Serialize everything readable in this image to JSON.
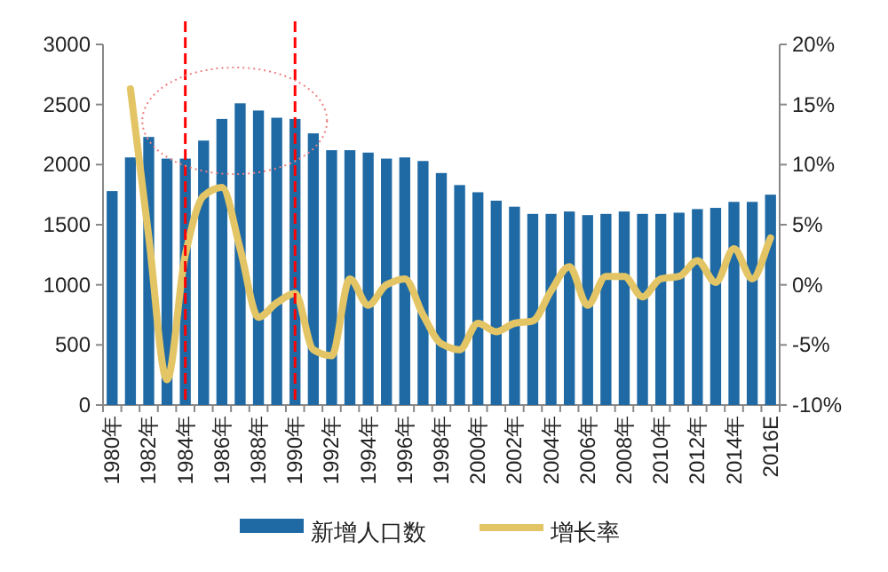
{
  "chart_data": {
    "type": "bar",
    "categories": [
      "1980年",
      null,
      "1982年",
      null,
      "1984年",
      null,
      "1986年",
      null,
      "1988年",
      null,
      "1990年",
      null,
      "1992年",
      null,
      "1994年",
      null,
      "1996年",
      null,
      "1998年",
      null,
      "2000年",
      null,
      "2002年",
      null,
      "2004年",
      null,
      "2006年",
      null,
      "2008年",
      null,
      "2010年",
      null,
      "2012年",
      null,
      "2014年",
      null,
      "2016E"
    ],
    "series": [
      {
        "name": "新增人口数",
        "color": "#1f6aa5",
        "values": [
          1780,
          2060,
          2230,
          2050,
          2050,
          2200,
          2380,
          2510,
          2450,
          2390,
          2380,
          2260,
          2120,
          2120,
          2100,
          2050,
          2060,
          2030,
          1930,
          1830,
          1770,
          1700,
          1650,
          1590,
          1590,
          1610,
          1580,
          1590,
          1610,
          1590,
          1590,
          1600,
          1630,
          1640,
          1690,
          1690,
          1750
        ]
      },
      {
        "name": "增长率",
        "type": "line",
        "axis": "y2",
        "color": "#e3c565",
        "values": [
          null,
          16.3,
          4,
          -7.9,
          2.5,
          7.4,
          8.1,
          3,
          -2.7,
          -1.5,
          -0.7,
          -5.4,
          -5.9,
          0.5,
          -1.7,
          0,
          0.5,
          -2.5,
          -4.9,
          -5.4,
          -3.2,
          -3.9,
          -3.2,
          -3,
          -0.5,
          1.5,
          -1.7,
          0.7,
          0.7,
          -1,
          0.5,
          0.7,
          2,
          0.2,
          3,
          0.5,
          3.9
        ]
      }
    ],
    "ylim": [
      0,
      3000
    ],
    "yticks": [
      0,
      500,
      1000,
      1500,
      2000,
      2500,
      3000
    ],
    "y2lim": [
      -10,
      20
    ],
    "y2ticks": [
      {
        "value": -10,
        "label": "-10%"
      },
      {
        "value": -5,
        "label": "-5%"
      },
      {
        "value": 0,
        "label": "0%"
      },
      {
        "value": 5,
        "label": "5%"
      },
      {
        "value": 10,
        "label": "10%"
      },
      {
        "value": 15,
        "label": "15%"
      },
      {
        "value": 20,
        "label": "20%"
      }
    ],
    "ref_lines": [
      {
        "axis": "x",
        "value": "1984年",
        "color": "#ff0000",
        "line_style": "dashed"
      },
      {
        "axis": "x",
        "value": "1990年",
        "color": "#ff0000",
        "line_style": "dashed"
      }
    ],
    "legend": "bottom",
    "grid": false
  }
}
